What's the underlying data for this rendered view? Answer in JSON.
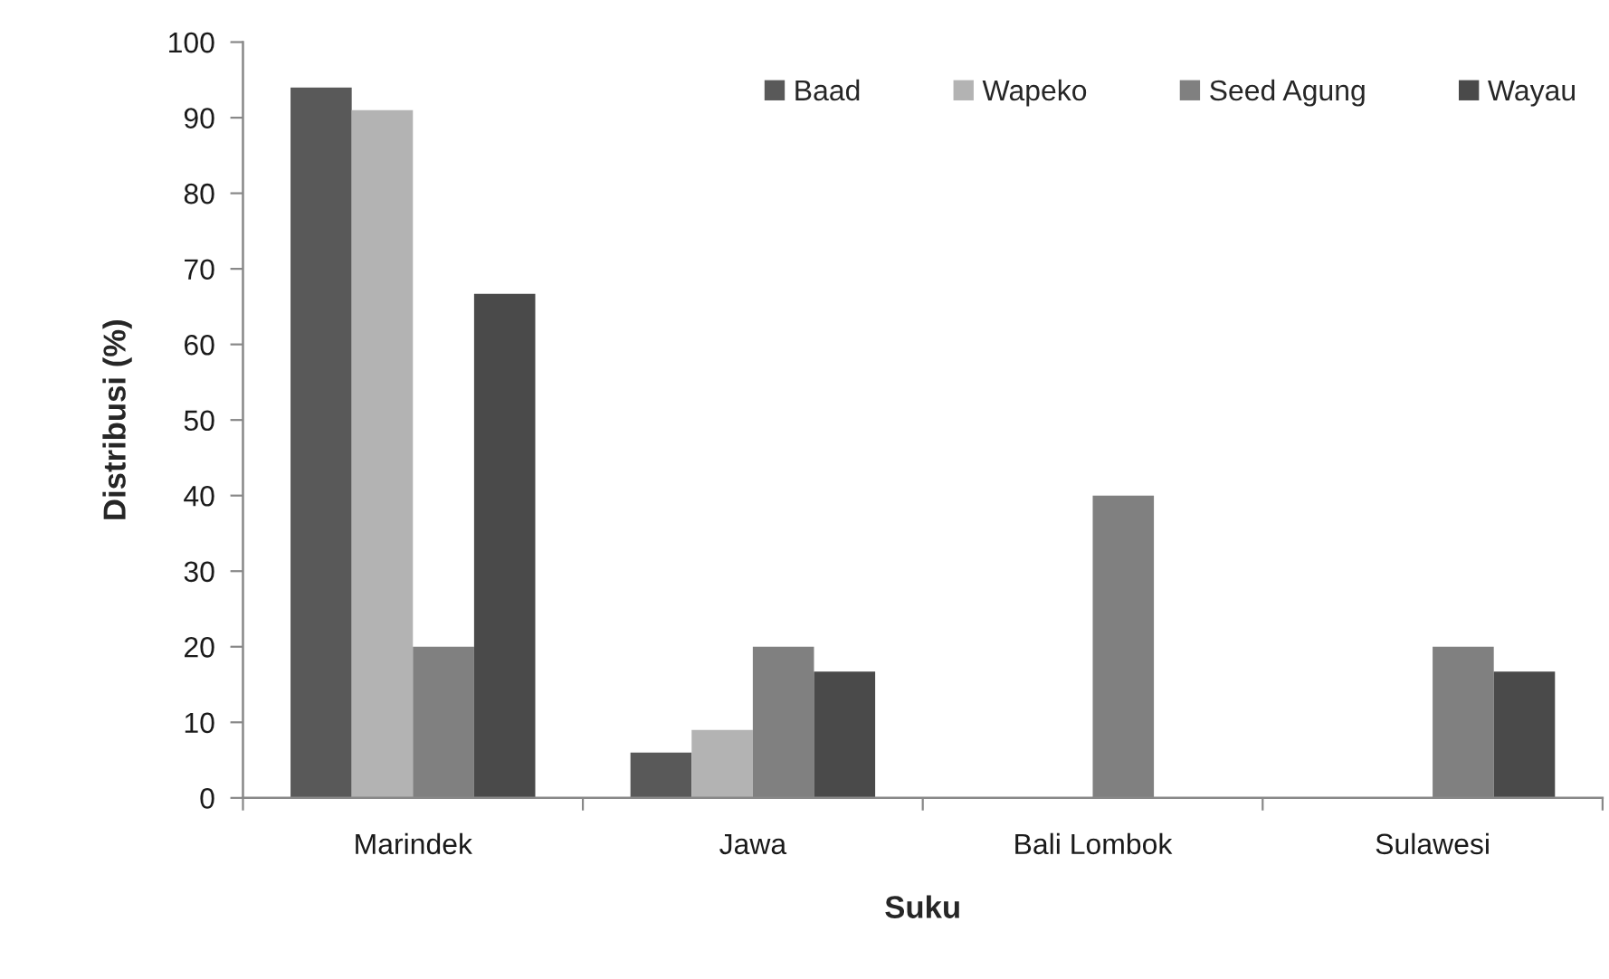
{
  "chart_data": {
    "type": "bar",
    "xlabel": "Suku",
    "ylabel": "Distribusi (%)",
    "categories": [
      "Marindek",
      "Jawa",
      "Bali Lombok",
      "Sulawesi"
    ],
    "series": [
      {
        "name": "Baad",
        "color": "#595959",
        "values": [
          94,
          6,
          0,
          0
        ]
      },
      {
        "name": "Wapeko",
        "color": "#b3b3b3",
        "values": [
          91,
          9,
          0,
          0
        ]
      },
      {
        "name": "Seed Agung",
        "color": "#808080",
        "values": [
          20,
          20,
          40,
          20
        ]
      },
      {
        "name": "Wayau",
        "color": "#4a4a4a",
        "values": [
          66.7,
          16.7,
          0,
          16.7
        ]
      }
    ],
    "ylim": [
      0,
      100
    ],
    "yticks": [
      0,
      10,
      20,
      30,
      40,
      50,
      60,
      70,
      80,
      90,
      100
    ],
    "legend": "top right"
  }
}
